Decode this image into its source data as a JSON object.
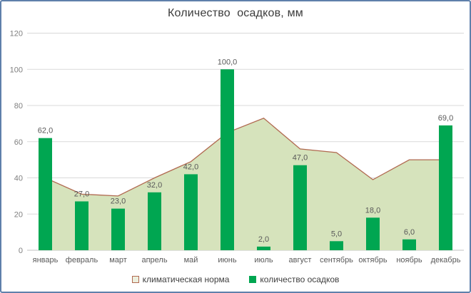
{
  "title": "Количество  осадков, мм",
  "colors": {
    "bar": "#00A651",
    "area_fill": "#D6E3BC",
    "area_line": "#B16A51",
    "grid": "#D9D9D9",
    "axis_line": "#C0C0C0",
    "axis_text": "#7F7F7F",
    "month_text": "#595959",
    "data_label_text": "#595959",
    "legend_swatch_fill": "#ECEFDE",
    "title_text": "#3B3B3B",
    "border": "#5F80AB"
  },
  "chart_data": {
    "type": "combo",
    "title": "Количество  осадков, мм",
    "categories": [
      "январь",
      "февраль",
      "март",
      "апрель",
      "май",
      "июнь",
      "июль",
      "август",
      "сентябрь",
      "октябрь",
      "ноябрь",
      "декабрь"
    ],
    "series": [
      {
        "name": "климатическая норма",
        "type": "area",
        "values": [
          40,
          31,
          30,
          40,
          49,
          65,
          73,
          56,
          54,
          39,
          50,
          50
        ]
      },
      {
        "name": "количество осадков",
        "type": "bar",
        "values": [
          62,
          27,
          23,
          32,
          42,
          100,
          2,
          47,
          5,
          18,
          6,
          69
        ],
        "data_labels": [
          "62,0",
          "27,0",
          "23,0",
          "32,0",
          "42,0",
          "100,0",
          "2,0",
          "47,0",
          "5,0",
          "18,0",
          "6,0",
          "69,0"
        ]
      }
    ],
    "xlabel": "",
    "ylabel": "",
    "ylim": [
      0,
      120
    ],
    "yticks": [
      0,
      20,
      40,
      60,
      80,
      100,
      120
    ],
    "grid": true,
    "legend_position": "bottom",
    "decimal_separator": ","
  }
}
